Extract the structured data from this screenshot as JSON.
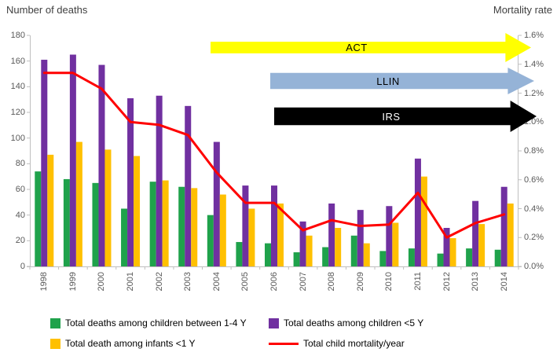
{
  "chart_data": {
    "type": "bar+line",
    "title": "",
    "left_axis": {
      "label": "Number of deaths",
      "min": 0,
      "max": 180,
      "step": 20
    },
    "right_axis": {
      "label": "Mortality rate",
      "min": 0,
      "max": 1.6,
      "step": 0.2,
      "tick_format": "percent_1dp"
    },
    "categories": [
      "1998",
      "1999",
      "2000",
      "2001",
      "2002",
      "2003",
      "2004",
      "2005",
      "2006",
      "2007",
      "2008",
      "2009",
      "2010",
      "2011",
      "2012",
      "2013",
      "2014"
    ],
    "series": [
      {
        "name": "Total deaths among children between 1-4 Y",
        "color": "#1FA24B",
        "axis": "left",
        "values": [
          74,
          68,
          65,
          45,
          66,
          62,
          40,
          19,
          18,
          11,
          15,
          24,
          12,
          14,
          10,
          14,
          13
        ]
      },
      {
        "name": "Total deaths among children <5 Y",
        "color": "#7030A0",
        "axis": "left",
        "values": [
          161,
          165,
          157,
          131,
          133,
          125,
          97,
          63,
          63,
          35,
          49,
          44,
          47,
          84,
          30,
          51,
          62
        ]
      },
      {
        "name": "Total death among infants <1 Y",
        "color": "#FFC000",
        "axis": "left",
        "values": [
          87,
          97,
          91,
          86,
          67,
          61,
          56,
          45,
          49,
          24,
          30,
          18,
          34,
          70,
          22,
          33,
          49
        ]
      }
    ],
    "line_series": {
      "name": "Total child mortality/year",
      "color": "#FF0000",
      "axis": "right",
      "values_percent": [
        1.34,
        1.34,
        1.23,
        1.0,
        0.98,
        0.91,
        0.65,
        0.44,
        0.44,
        0.25,
        0.32,
        0.28,
        0.29,
        0.51,
        0.2,
        0.3,
        0.36
      ]
    },
    "annotations": [
      {
        "label": "ACT",
        "fill": "#FFFF00",
        "text_color": "#000000"
      },
      {
        "label": "LLIN",
        "fill": "#95B3D7",
        "text_color": "#000000"
      },
      {
        "label": "IRS",
        "fill": "#000000",
        "text_color": "#FFFFFF"
      }
    ],
    "legend_position": "bottom",
    "grid": false
  }
}
